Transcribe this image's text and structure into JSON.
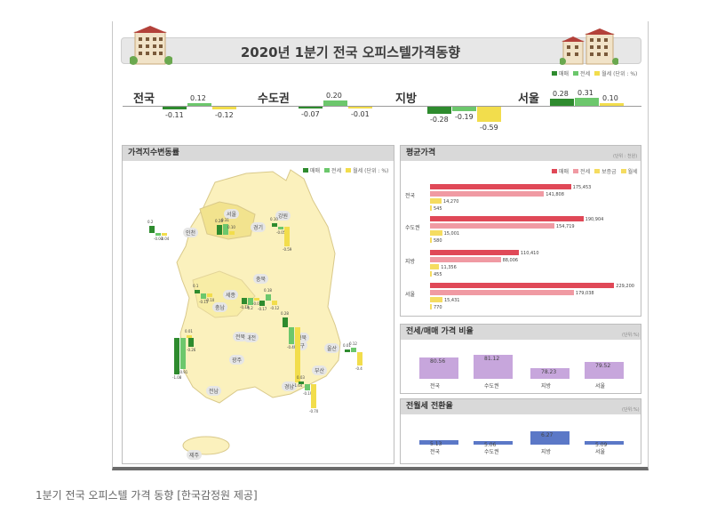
{
  "title": "2020년 1분기 전국 오피스텔가격동향",
  "top_legend": [
    "매매",
    "전세",
    "월세"
  ],
  "top_unit": "(단위 : %)",
  "caption": "1분기 전국 오피스텔 가격 동향 [한국감정원 제공]",
  "colors": {
    "sale": "#2e8b2e",
    "jeonse": "#6cc76c",
    "monthly": "#f2dd4c",
    "avg_sale": "#e04857",
    "avg_jeonse": "#f09aa3",
    "avg_deposit": "#f5dc60",
    "ratio_bar": "#c7a6dc",
    "conv_bar": "#5b78c7"
  },
  "chart_data": [
    {
      "type": "bar",
      "title": "2020년 1분기 전국 오피스텔가격동향",
      "categories": [
        "전국",
        "수도권",
        "지방",
        "서울"
      ],
      "series": [
        {
          "name": "매매",
          "values": [
            -0.11,
            -0.07,
            -0.28,
            0.28
          ]
        },
        {
          "name": "전세",
          "values": [
            0.12,
            0.2,
            -0.19,
            0.31
          ]
        },
        {
          "name": "월세",
          "values": [
            -0.12,
            -0.01,
            -0.59,
            0.1
          ]
        }
      ],
      "labels": [
        "-0.11",
        "0.12",
        "-0.12",
        "-0.07",
        "0.20",
        "-0.01",
        "-0.28",
        "-0.19",
        "-0.59",
        "0.28",
        "0.31",
        "0.10"
      ]
    },
    {
      "type": "bar",
      "title": "평균가격",
      "unit": "(단위 : 천원)",
      "orientation": "horizontal",
      "legend": [
        "매매",
        "전세",
        "보증금",
        "월세"
      ],
      "categories": [
        "전국",
        "수도권",
        "지방",
        "서울"
      ],
      "series": [
        {
          "name": "매매",
          "values": [
            175453,
            190904,
            110410,
            229200
          ]
        },
        {
          "name": "전세",
          "values": [
            141808,
            154719,
            88006,
            179038
          ]
        },
        {
          "name": "보증금",
          "values": [
            14270,
            15001,
            11356,
            15431
          ]
        },
        {
          "name": "월세",
          "values": [
            545,
            580,
            455,
            770
          ]
        }
      ],
      "labels": [
        [
          "175,453",
          "141,808",
          "14,270",
          "545"
        ],
        [
          "190,904",
          "154,719",
          "15,001",
          "580"
        ],
        [
          "110,410",
          "88,006",
          "11,356",
          "455"
        ],
        [
          "229,200",
          "179,038",
          "15,431",
          "770"
        ]
      ],
      "xlim": [
        0,
        230000
      ]
    },
    {
      "type": "bar",
      "title": "전세/매매 가격 비율",
      "unit": "(단위:%)",
      "categories": [
        "전국",
        "수도권",
        "지방",
        "서울"
      ],
      "values": [
        80.56,
        81.12,
        78.23,
        79.52
      ],
      "labels": [
        "80.56",
        "81.12",
        "78.23",
        "79.52"
      ],
      "ylim": [
        76,
        82
      ]
    },
    {
      "type": "bar",
      "title": "전월세 전환율",
      "unit": "(단위:%)",
      "categories": [
        "전국",
        "수도권",
        "지방",
        "서울"
      ],
      "values": [
        5.13,
        5.06,
        6.27,
        5.09
      ],
      "labels": [
        "5.13",
        "5.06",
        "6.27",
        "5.09"
      ],
      "ylim": [
        4.6,
        6.4
      ]
    },
    {
      "type": "bar",
      "title": "가격지수변동률",
      "unit": "(단위 : %)",
      "legend": [
        "매매",
        "전세",
        "월세"
      ],
      "categories": [
        "서울",
        "경기",
        "인천",
        "강원",
        "충북",
        "세종",
        "대전",
        "충남",
        "경북",
        "대구",
        "울산",
        "부산",
        "경남",
        "전북",
        "광주",
        "전남",
        "제주"
      ],
      "labels": [
        "0.28",
        "0.31",
        "0.10",
        "0.10",
        "-0.05",
        "-0.59",
        "0.2",
        "-0.03",
        "-0.04",
        "0.1",
        "-0.15",
        "-0.10",
        "-0.19",
        "-0.2",
        "-0.08",
        "-0.17",
        "0.18",
        "-0.12",
        "0.28",
        "-0.49",
        "-1.64",
        "0.03",
        "-0.19",
        "-0.70",
        "0.01",
        "0.12",
        "-0.4",
        "-1.08",
        "-0.91",
        "0.01",
        "-0.26"
      ]
    }
  ],
  "panels": {
    "index": {
      "title": "가격지수변동률",
      "legend_unit": "(단위 : %)",
      "legend": [
        "매매",
        "전세",
        "월세"
      ]
    },
    "avg": {
      "title": "평균가격",
      "unit": "(단위 : 천원)"
    },
    "ratio": {
      "title": "전세/매매 가격 비율",
      "unit": "(단위:%)"
    },
    "conv": {
      "title": "전월세 전환율",
      "unit": "(단위:%)"
    }
  },
  "map_labels": [
    "서울",
    "경기",
    "인천",
    "강원",
    "세종",
    "충북",
    "충남",
    "대전",
    "경북",
    "대구",
    "울산",
    "부산",
    "경남",
    "전북",
    "광주",
    "전남",
    "제주"
  ]
}
